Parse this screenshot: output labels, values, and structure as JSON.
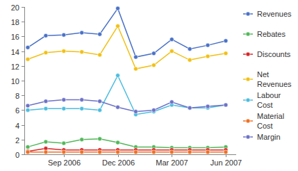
{
  "chart_data": {
    "type": "line",
    "categories": [
      null,
      null,
      "Sep 2006",
      null,
      null,
      "Dec 2006",
      null,
      null,
      "Mar 2007",
      null,
      null,
      "Jun 2007"
    ],
    "series": [
      {
        "name": "Revenues",
        "color": "#4a72c8",
        "marker": "circle",
        "values": [
          14.5,
          16.1,
          16.2,
          16.5,
          16.3,
          19.8,
          13.2,
          13.7,
          15.6,
          14.3,
          14.8,
          15.4
        ]
      },
      {
        "name": "Rebates",
        "color": "#52b85a",
        "marker": "circle",
        "values": [
          1.0,
          1.7,
          1.5,
          2.0,
          2.1,
          1.6,
          1.0,
          1.0,
          0.9,
          0.9,
          0.9,
          1.0
        ]
      },
      {
        "name": "Discounts",
        "color": "#d8262a",
        "marker": "circle",
        "values": [
          0.4,
          0.8,
          0.6,
          0.6,
          0.6,
          0.6,
          0.6,
          0.6,
          0.6,
          0.6,
          0.6,
          0.6
        ]
      },
      {
        "name": "Net Revenues",
        "color": "#f2c014",
        "marker": "circle",
        "values": [
          12.9,
          13.8,
          14.0,
          13.9,
          13.5,
          17.4,
          11.6,
          12.1,
          14.0,
          12.8,
          13.3,
          13.7
        ]
      },
      {
        "name": "Labour Cost",
        "color": "#4cbde0",
        "marker": "circle",
        "values": [
          6.0,
          6.2,
          6.2,
          6.2,
          6.0,
          10.7,
          5.4,
          5.8,
          6.7,
          6.3,
          6.3,
          6.7
        ]
      },
      {
        "name": "Material Cost",
        "color": "#f07022",
        "marker": "circle",
        "values": [
          0.3,
          0.3,
          0.3,
          0.3,
          0.3,
          0.3,
          0.3,
          0.3,
          0.3,
          0.3,
          0.3,
          0.3
        ]
      },
      {
        "name": "Margin",
        "color": "#6d72c8",
        "marker": "circle",
        "values": [
          6.6,
          7.2,
          7.4,
          7.4,
          7.2,
          6.4,
          5.8,
          6.0,
          7.1,
          6.3,
          6.5,
          6.7
        ]
      }
    ],
    "ylim": [
      0,
      20
    ],
    "yticks": [
      0,
      2,
      4,
      6,
      8,
      10,
      12,
      14,
      16,
      18,
      20
    ],
    "grid": false,
    "legend": "right"
  }
}
